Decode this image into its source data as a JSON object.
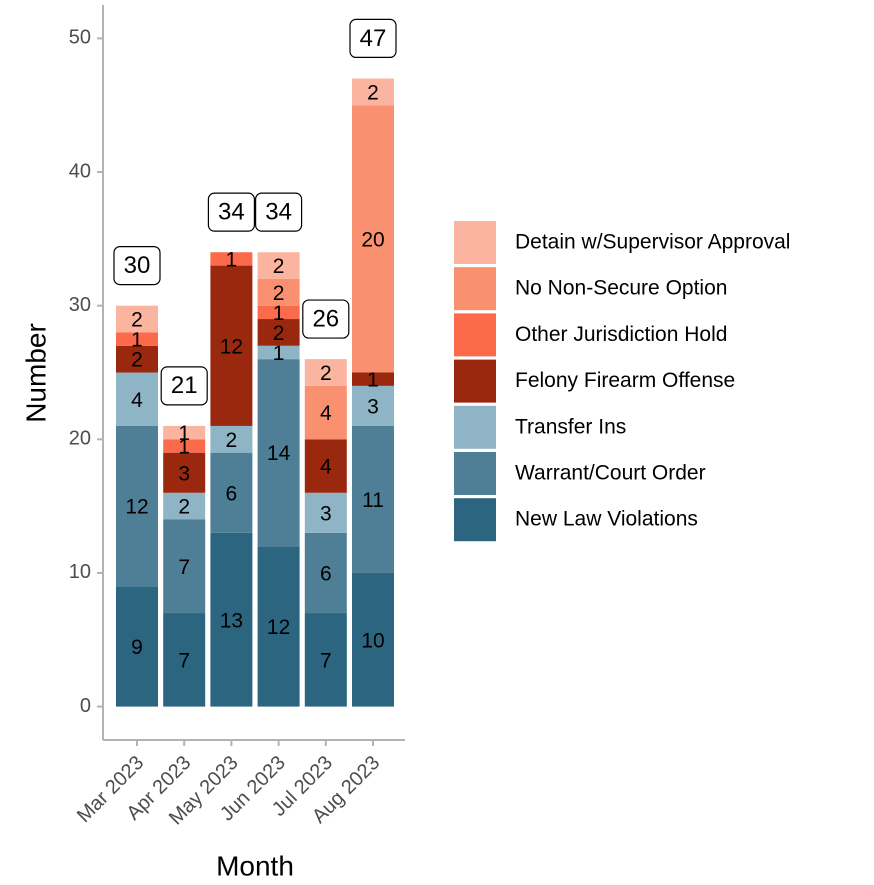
{
  "chart_data": {
    "type": "stacked_bar",
    "x_label": "Month",
    "y_label": "Number",
    "categories": [
      "Mar 2023",
      "Apr 2023",
      "May 2023",
      "Jun 2023",
      "Jul 2023",
      "Aug 2023"
    ],
    "series": [
      {
        "name": "New Law Violations",
        "color": "#2b6580",
        "values": [
          9,
          7,
          13,
          12,
          7,
          10
        ]
      },
      {
        "name": "Warrant/Court Order",
        "color": "#4f7f97",
        "values": [
          12,
          7,
          6,
          14,
          6,
          11
        ]
      },
      {
        "name": "Transfer Ins",
        "color": "#8fb4c6",
        "values": [
          4,
          2,
          2,
          1,
          3,
          3
        ]
      },
      {
        "name": "Felony Firearm Offense",
        "color": "#99280f",
        "values": [
          2,
          3,
          12,
          2,
          4,
          1
        ]
      },
      {
        "name": "Other Jurisdiction Hold",
        "color": "#fb6a4a",
        "values": [
          1,
          1,
          1,
          1,
          0,
          0
        ]
      },
      {
        "name": "No Non-Secure Option",
        "color": "#f9906f",
        "values": [
          0,
          0,
          0,
          2,
          4,
          20
        ]
      },
      {
        "name": "Detain w/Supervisor Approval",
        "color": "#fbb4a0",
        "values": [
          2,
          1,
          0,
          2,
          2,
          2
        ]
      }
    ],
    "totals": [
      30,
      21,
      34,
      34,
      26,
      47
    ],
    "ylim": [
      -2.5,
      52.5
    ],
    "yticks": [
      0,
      10,
      20,
      30,
      40,
      50
    ]
  }
}
